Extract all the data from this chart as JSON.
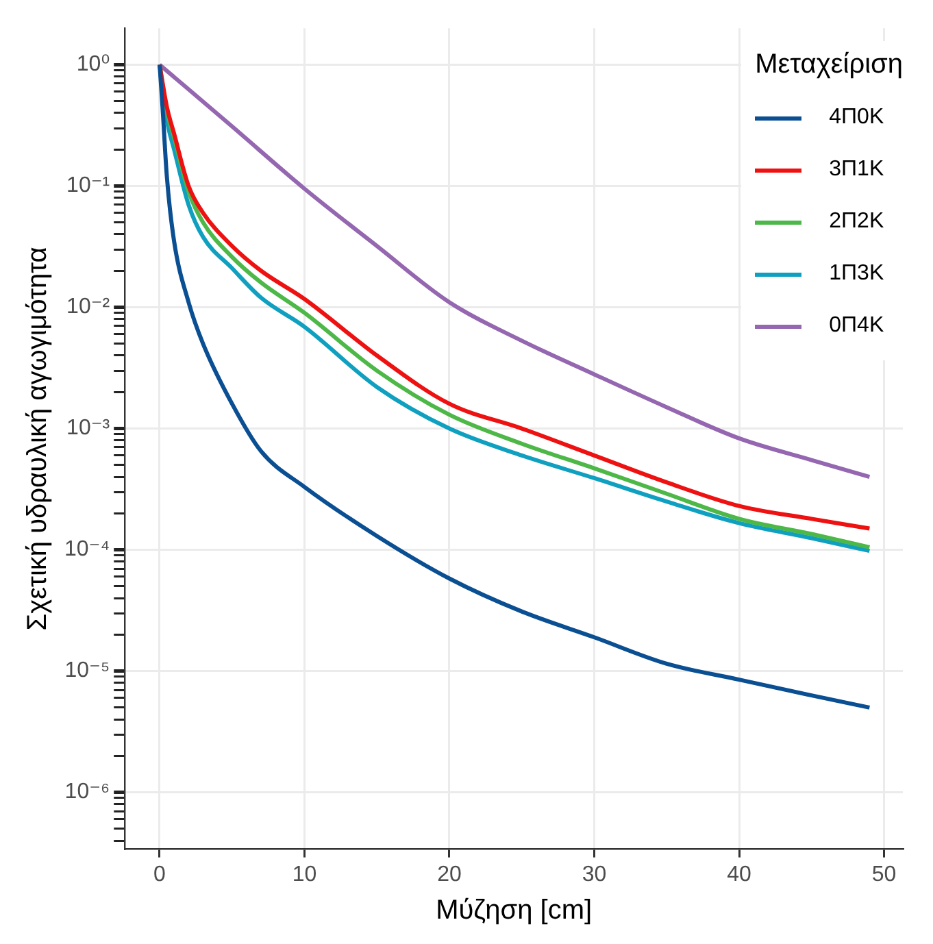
{
  "chart_data": {
    "type": "line",
    "xlabel": "Μύζηση [cm]",
    "ylabel": "Σχετική υδραυλική αγωγιμότητα",
    "legend_title": "Μεταχείριση",
    "log": "y",
    "grid": true,
    "legend": "top right",
    "marker": "none",
    "xlim": [
      -2.4,
      51.3
    ],
    "xticks": [
      0,
      10,
      20,
      30,
      40,
      50
    ],
    "ylim": [
      3.4e-07,
      2
    ],
    "yticks": [
      {
        "value": 1,
        "label": "10⁰"
      },
      {
        "value": 0.1,
        "label": "10⁻¹"
      },
      {
        "value": 0.01,
        "label": "10⁻²"
      },
      {
        "value": 0.001,
        "label": "10⁻³"
      },
      {
        "value": 0.0001,
        "label": "10⁻⁴"
      },
      {
        "value": 1e-05,
        "label": "10⁻⁵"
      },
      {
        "value": 1e-06,
        "label": "10⁻⁶"
      },
      {
        "value": 4e-07,
        "label": null
      },
      {
        "value": 5e-07,
        "label": null
      },
      {
        "value": 6e-07,
        "label": null
      },
      {
        "value": 7e-07,
        "label": null
      },
      {
        "value": 8e-07,
        "label": null
      },
      {
        "value": 9e-07,
        "label": null
      },
      {
        "value": 2e-06,
        "label": null
      },
      {
        "value": 3e-06,
        "label": null
      },
      {
        "value": 4e-06,
        "label": null
      },
      {
        "value": 5e-06,
        "label": null
      },
      {
        "value": 6e-06,
        "label": null
      },
      {
        "value": 7e-06,
        "label": null
      },
      {
        "value": 8e-06,
        "label": null
      },
      {
        "value": 9e-06,
        "label": null
      },
      {
        "value": 2e-05,
        "label": null
      },
      {
        "value": 3e-05,
        "label": null
      },
      {
        "value": 4e-05,
        "label": null
      },
      {
        "value": 5e-05,
        "label": null
      },
      {
        "value": 6e-05,
        "label": null
      },
      {
        "value": 7e-05,
        "label": null
      },
      {
        "value": 8e-05,
        "label": null
      },
      {
        "value": 9e-05,
        "label": null
      },
      {
        "value": 0.0002,
        "label": null
      },
      {
        "value": 0.0003,
        "label": null
      },
      {
        "value": 0.0004,
        "label": null
      },
      {
        "value": 0.0005,
        "label": null
      },
      {
        "value": 0.0006,
        "label": null
      },
      {
        "value": 0.0007,
        "label": null
      },
      {
        "value": 0.0008,
        "label": null
      },
      {
        "value": 0.0009,
        "label": null
      },
      {
        "value": 0.002,
        "label": null
      },
      {
        "value": 0.003,
        "label": null
      },
      {
        "value": 0.004,
        "label": null
      },
      {
        "value": 0.005,
        "label": null
      },
      {
        "value": 0.006,
        "label": null
      },
      {
        "value": 0.007,
        "label": null
      },
      {
        "value": 0.008,
        "label": null
      },
      {
        "value": 0.009,
        "label": null
      },
      {
        "value": 0.02,
        "label": null
      },
      {
        "value": 0.03,
        "label": null
      },
      {
        "value": 0.04,
        "label": null
      },
      {
        "value": 0.05,
        "label": null
      },
      {
        "value": 0.06,
        "label": null
      },
      {
        "value": 0.07,
        "label": null
      },
      {
        "value": 0.08,
        "label": null
      },
      {
        "value": 0.09,
        "label": null
      },
      {
        "value": 0.2,
        "label": null
      },
      {
        "value": 0.3,
        "label": null
      },
      {
        "value": 0.4,
        "label": null
      },
      {
        "value": 0.5,
        "label": null
      },
      {
        "value": 0.6,
        "label": null
      },
      {
        "value": 0.7,
        "label": null
      },
      {
        "value": 0.8,
        "label": null
      },
      {
        "value": 0.9,
        "label": null
      }
    ],
    "series": [
      {
        "name": "4Π0K",
        "color": "#0b4f93",
        "x": [
          0,
          0.2,
          0.5,
          1,
          2,
          3,
          5,
          7,
          10,
          15,
          20,
          25,
          30,
          35,
          40,
          45,
          49
        ],
        "values": [
          1,
          0.45,
          0.12,
          0.035,
          0.011,
          0.005,
          0.0016,
          0.00065,
          0.00033,
          0.00013,
          5.8e-05,
          3.1e-05,
          1.9e-05,
          1.15e-05,
          8.5e-06,
          6.3e-06,
          5e-06
        ]
      },
      {
        "name": "3Π1K",
        "color": "#ee1111",
        "x": [
          0,
          0.5,
          1,
          2,
          3,
          5,
          7,
          10,
          15,
          20,
          25,
          30,
          35,
          40,
          45,
          49
        ],
        "values": [
          1,
          0.45,
          0.27,
          0.1,
          0.06,
          0.032,
          0.02,
          0.0117,
          0.004,
          0.0016,
          0.001,
          0.0006,
          0.00036,
          0.00023,
          0.00018,
          0.00015
        ]
      },
      {
        "name": "2Π2K",
        "color": "#4db848",
        "x": [
          0,
          0.5,
          1,
          2,
          3,
          5,
          7,
          10,
          15,
          20,
          25,
          30,
          35,
          40,
          45,
          49
        ],
        "values": [
          1,
          0.42,
          0.25,
          0.09,
          0.05,
          0.026,
          0.016,
          0.009,
          0.003,
          0.0013,
          0.00075,
          0.00047,
          0.00029,
          0.00018,
          0.000135,
          0.000105
        ]
      },
      {
        "name": "1Π3K",
        "color": "#0fa0c0",
        "x": [
          0,
          0.5,
          1,
          2,
          3,
          5,
          7,
          10,
          15,
          20,
          25,
          30,
          35,
          40,
          45,
          49
        ],
        "values": [
          1,
          0.35,
          0.2,
          0.07,
          0.038,
          0.021,
          0.012,
          0.0069,
          0.0022,
          0.001,
          0.0006,
          0.00039,
          0.00025,
          0.000166,
          0.000125,
          9.8e-05
        ]
      },
      {
        "name": "0Π4K",
        "color": "#9467b0",
        "x": [
          0,
          5,
          10,
          15,
          20,
          25,
          30,
          35,
          40,
          45,
          49
        ],
        "values": [
          1,
          0.31,
          0.095,
          0.032,
          0.011,
          0.0053,
          0.0028,
          0.0015,
          0.00083,
          0.00055,
          0.0004
        ]
      }
    ]
  }
}
